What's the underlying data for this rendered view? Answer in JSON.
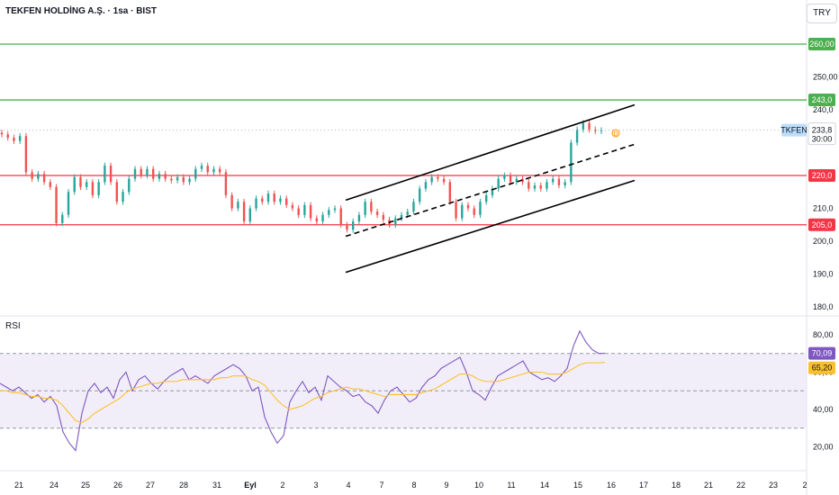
{
  "header": {
    "title": "TEKFEN HOLDİNG A.Ş. · 1sa · BIST",
    "currency": "TRY"
  },
  "rsi_panel": {
    "title": "RSI"
  },
  "colors": {
    "up": "#26a69a",
    "down": "#ef5350",
    "resistance_green": "#4caf50",
    "support_red": "#f23645",
    "rsi_line": "#7e57c2",
    "rsi_ma": "#fbc02d",
    "rsi_band": "#ede7f6",
    "channel": "#000000",
    "ticker_tag": "#bbdefb"
  },
  "chart_data": [
    {
      "type": "candlestick",
      "y_axis": {
        "ticks": [
          "250,00",
          "240,0",
          "210,0",
          "200,0",
          "190,0",
          "180,0"
        ],
        "tick_values": [
          250,
          240,
          210,
          200,
          190,
          180
        ],
        "ylim": [
          177,
          267
        ]
      },
      "x_axis": {
        "ticks": [
          "21",
          "24",
          "25",
          "26",
          "27",
          "28",
          "31",
          "Eyl",
          "2",
          "3",
          "4",
          "7",
          "8",
          "9",
          "10",
          "11",
          "14",
          "15",
          "16",
          "17",
          "18",
          "21",
          "22",
          "23",
          "2"
        ]
      },
      "horizontal_levels": [
        {
          "value": 260,
          "label": "260,00",
          "color": "#4caf50"
        },
        {
          "value": 243,
          "label": "243,0",
          "color": "#4caf50"
        },
        {
          "value": 220,
          "label": "220,0",
          "color": "#f23645"
        },
        {
          "value": 205,
          "label": "205,0",
          "color": "#f23645"
        }
      ],
      "last_price": {
        "symbol": "TKFEN",
        "value": "233,8",
        "countdown": "30:00"
      },
      "channel": {
        "upper": [
          [
            3.9,
            212.5
          ],
          [
            17.0,
            241.5
          ]
        ],
        "middle": [
          [
            3.9,
            201.5
          ],
          [
            17.0,
            229.5
          ]
        ],
        "lower": [
          [
            3.9,
            190.5
          ],
          [
            17.0,
            218.5
          ]
        ]
      },
      "candles": [
        [
          233.0,
          232.5
        ],
        [
          232.5,
          231.5
        ],
        [
          231.5,
          230.5
        ],
        [
          230.5,
          232.0
        ],
        [
          232.0,
          221.0
        ],
        [
          221.0,
          219.0
        ],
        [
          219.0,
          220.5
        ],
        [
          220.5,
          218.0
        ],
        [
          218.0,
          216.5
        ],
        [
          216.5,
          205.5
        ],
        [
          205.5,
          208.0
        ],
        [
          208.0,
          215.0
        ],
        [
          215.0,
          219.5
        ],
        [
          219.5,
          216.5
        ],
        [
          216.5,
          218.0
        ],
        [
          218.0,
          214.0
        ],
        [
          214.0,
          218.0
        ],
        [
          218.0,
          223.0
        ],
        [
          223.0,
          218.0
        ],
        [
          218.0,
          212.0
        ],
        [
          212.0,
          215.0
        ],
        [
          215.0,
          219.0
        ],
        [
          219.0,
          222.0
        ],
        [
          222.0,
          220.0
        ],
        [
          220.0,
          222.0
        ],
        [
          222.0,
          219.0
        ],
        [
          219.0,
          220.5
        ],
        [
          220.5,
          219.0
        ],
        [
          219.0,
          218.5
        ],
        [
          218.5,
          219.5
        ],
        [
          219.5,
          218.0
        ],
        [
          218.0,
          219.0
        ],
        [
          219.0,
          222.0
        ],
        [
          222.0,
          223.0
        ],
        [
          223.0,
          221.0
        ],
        [
          221.0,
          222.0
        ],
        [
          222.0,
          221.0
        ],
        [
          221.0,
          214.0
        ],
        [
          214.0,
          210.0
        ],
        [
          210.0,
          212.0
        ],
        [
          212.0,
          206.0
        ],
        [
          206.0,
          210.0
        ],
        [
          210.0,
          213.0
        ],
        [
          213.0,
          212.0
        ],
        [
          212.0,
          214.5
        ],
        [
          214.5,
          212.0
        ],
        [
          212.0,
          213.0
        ],
        [
          213.0,
          211.0
        ],
        [
          211.0,
          210.0
        ],
        [
          210.0,
          208.0
        ],
        [
          208.0,
          211.0
        ],
        [
          211.0,
          207.0
        ],
        [
          207.0,
          206.0
        ],
        [
          206.0,
          208.0
        ],
        [
          208.0,
          209.5
        ],
        [
          209.5,
          210.0
        ],
        [
          210.0,
          205.0
        ],
        [
          205.0,
          203.5
        ],
        [
          203.5,
          206.0
        ],
        [
          206.0,
          208.0
        ],
        [
          208.0,
          212.0
        ],
        [
          212.0,
          209.0
        ],
        [
          209.0,
          208.0
        ],
        [
          208.0,
          206.5
        ],
        [
          206.5,
          205.0
        ],
        [
          205.0,
          207.0
        ],
        [
          207.0,
          208.0
        ],
        [
          208.0,
          209.0
        ],
        [
          209.0,
          212.0
        ],
        [
          212.0,
          216.0
        ],
        [
          216.0,
          218.0
        ],
        [
          218.0,
          219.5
        ],
        [
          219.5,
          219.0
        ],
        [
          219.0,
          218.0
        ],
        [
          218.0,
          212.0
        ],
        [
          212.0,
          207.0
        ],
        [
          207.0,
          211.0
        ],
        [
          211.0,
          210.0
        ],
        [
          210.0,
          208.0
        ],
        [
          208.0,
          212.0
        ],
        [
          212.0,
          214.0
        ],
        [
          214.0,
          216.0
        ],
        [
          216.0,
          219.0
        ],
        [
          219.0,
          220.0
        ],
        [
          220.0,
          218.0
        ],
        [
          218.0,
          219.0
        ],
        [
          219.0,
          218.0
        ],
        [
          218.0,
          216.0
        ],
        [
          216.0,
          217.0
        ],
        [
          217.0,
          216.0
        ],
        [
          216.0,
          218.0
        ],
        [
          218.0,
          219.0
        ],
        [
          219.0,
          217.0
        ],
        [
          217.0,
          218.0
        ],
        [
          218.0,
          230.0
        ],
        [
          230.0,
          234.0
        ],
        [
          234.0,
          236.0
        ],
        [
          236.0,
          234.0
        ],
        [
          234.0,
          233.5
        ],
        [
          233.5,
          233.8
        ]
      ]
    },
    {
      "type": "line",
      "name": "RSI",
      "y_axis": {
        "ticks": [
          "80,00",
          "60,00",
          "40,00",
          "20,00"
        ],
        "tick_values": [
          80,
          60,
          40,
          20
        ],
        "ylim": [
          5,
          86
        ]
      },
      "bands": {
        "upper": 70,
        "middle": 50,
        "lower": 30
      },
      "last_values": {
        "rsi": "70,09",
        "ma": "65,20"
      },
      "series": [
        {
          "values": [
            54,
            52,
            50,
            52,
            49,
            46,
            48,
            44,
            47,
            42,
            28,
            22,
            18,
            38,
            50,
            54,
            49,
            52,
            46,
            56,
            60,
            50,
            56,
            58,
            54,
            51,
            55,
            58,
            60,
            62,
            56,
            58,
            56,
            54,
            58,
            60,
            62,
            64,
            62,
            58,
            50,
            52,
            36,
            28,
            22,
            26,
            44,
            50,
            55,
            49,
            52,
            45,
            58,
            55,
            52,
            50,
            47,
            48,
            44,
            42,
            38,
            45,
            50,
            52,
            48,
            44,
            46,
            52,
            56,
            58,
            62,
            64,
            66,
            68,
            60,
            50,
            48,
            45,
            52,
            58,
            60,
            62,
            64,
            66,
            60,
            58,
            56,
            57,
            55,
            58,
            62,
            74,
            82,
            76,
            72,
            70,
            70.09
          ]
        },
        {
          "values": [
            50,
            50,
            49,
            49,
            48,
            47,
            47,
            46,
            46,
            45,
            42,
            38,
            34,
            33,
            35,
            38,
            40,
            42,
            44,
            46,
            49,
            51,
            52,
            53,
            54,
            54,
            55,
            55,
            55,
            56,
            56,
            56,
            56,
            56,
            56,
            57,
            57,
            58,
            58,
            58,
            56,
            55,
            53,
            49,
            45,
            42,
            40,
            41,
            42,
            44,
            46,
            47,
            49,
            50,
            51,
            52,
            51,
            51,
            50,
            49,
            48,
            47,
            48,
            48,
            48,
            48,
            48,
            49,
            50,
            51,
            53,
            55,
            57,
            59,
            59,
            58,
            56,
            55,
            55,
            55,
            56,
            57,
            58,
            59,
            60,
            60,
            60,
            59,
            59,
            59,
            60,
            62,
            64,
            65,
            65,
            65,
            65.2
          ]
        }
      ]
    }
  ]
}
